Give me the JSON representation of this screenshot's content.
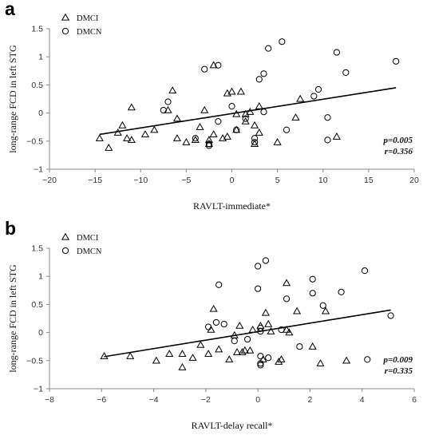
{
  "chart_data": [
    {
      "type": "scatter",
      "panel_label": "a",
      "xlabel": "RAVLT-immediate*",
      "ylabel": "long-range FCD in left STG",
      "xlim": [
        -20,
        20
      ],
      "ylim": [
        -1,
        1.5
      ],
      "xticks": [
        -20,
        -15,
        -10,
        -5,
        0,
        5,
        10,
        15,
        20
      ],
      "yticks": [
        -1,
        -0.5,
        0,
        0.5,
        1,
        1.5
      ],
      "x_tick_labels": [
        "−20",
        "−15",
        "−10",
        "−5",
        "0",
        "5",
        "10",
        "15",
        "20"
      ],
      "y_tick_labels": [
        "−1",
        "−0.5",
        "0",
        "0.5",
        "1",
        "1.5"
      ],
      "grid": false,
      "legend_position": "top-left",
      "series": [
        {
          "name": "DMCI",
          "marker": "triangle",
          "x": [
            -14.5,
            -13.5,
            -12.5,
            -12,
            -11.5,
            -11,
            -11,
            -9.5,
            -8.5,
            -7,
            -6.5,
            -6,
            -6,
            -5,
            -4,
            -3.5,
            -3,
            -2.5,
            -2.5,
            -2,
            -2,
            -1,
            -0.5,
            -0.5,
            0,
            0.5,
            0.5,
            1,
            1.5,
            1.5,
            2,
            2.5,
            2.5,
            3,
            3,
            5,
            7,
            7.5,
            11.5
          ],
          "y": [
            -0.45,
            -0.62,
            -0.35,
            -0.22,
            -0.45,
            -0.48,
            0.1,
            -0.38,
            -0.3,
            0.05,
            0.4,
            -0.45,
            -0.1,
            -0.52,
            -0.48,
            -0.25,
            0.05,
            -0.55,
            -0.48,
            0.85,
            -0.38,
            -0.45,
            -0.42,
            0.35,
            0.38,
            -0.3,
            -0.02,
            0.38,
            -0.02,
            -0.15,
            0.02,
            -0.55,
            -0.22,
            -0.35,
            0.12,
            -0.52,
            -0.08,
            0.25,
            -0.42
          ]
        },
        {
          "name": "DMCN",
          "marker": "circle",
          "x": [
            -7.5,
            -7,
            -4,
            -3,
            -2.5,
            -2.5,
            -1.5,
            -1.5,
            0,
            0.5,
            1.5,
            2.5,
            2.5,
            3,
            3.5,
            3.5,
            4,
            5.5,
            6,
            9,
            9.5,
            10.5,
            10.5,
            11.5,
            12.5,
            18
          ],
          "y": [
            0.05,
            0.2,
            -0.45,
            0.78,
            -0.58,
            -0.55,
            -0.15,
            0.85,
            0.12,
            -0.3,
            -0.1,
            -0.45,
            -0.52,
            0.6,
            0.7,
            0.02,
            1.15,
            1.27,
            -0.3,
            0.3,
            0.42,
            -0.48,
            -0.08,
            1.08,
            0.72,
            0.92
          ]
        }
      ],
      "trendline": {
        "x": [
          -14.5,
          18
        ],
        "y": [
          -0.38,
          0.45
        ]
      },
      "annotation": {
        "p": "p=0.005",
        "r": "r=0.356"
      }
    },
    {
      "type": "scatter",
      "panel_label": "b",
      "xlabel": "RAVLT-delay recall*",
      "ylabel": "long-range FCD in left STG",
      "xlim": [
        -8,
        6
      ],
      "ylim": [
        -1,
        1.5
      ],
      "xticks": [
        -8,
        -6,
        -4,
        -2,
        0,
        2,
        4,
        6
      ],
      "yticks": [
        -1,
        -0.5,
        0,
        0.5,
        1,
        1.5
      ],
      "x_tick_labels": [
        "−8",
        "−6",
        "−4",
        "−2",
        "0",
        "2",
        "4",
        "6"
      ],
      "y_tick_labels": [
        "−1",
        "−0.5",
        "0",
        "0.5",
        "1",
        "1.5"
      ],
      "grid": false,
      "legend_position": "top-left",
      "series": [
        {
          "name": "DMCI",
          "marker": "triangle",
          "x": [
            -5.9,
            -4.9,
            -3.9,
            -3.4,
            -2.9,
            -2.9,
            -2.5,
            -2.2,
            -1.9,
            -1.8,
            -1.7,
            -1.5,
            -1.1,
            -0.9,
            -0.8,
            -0.7,
            -0.6,
            -0.5,
            -0.3,
            -0.2,
            0.1,
            0.2,
            0.3,
            0.4,
            0.5,
            0.8,
            0.9,
            1.1,
            1.1,
            1.2,
            1.5,
            2.1,
            2.4,
            2.6,
            3.4
          ],
          "y": [
            -0.42,
            -0.42,
            -0.5,
            -0.38,
            -0.62,
            -0.38,
            -0.45,
            -0.22,
            -0.38,
            0.05,
            0.42,
            -0.3,
            -0.48,
            -0.05,
            -0.35,
            0.12,
            -0.35,
            -0.32,
            -0.32,
            0.05,
            0.12,
            -0.48,
            0.35,
            0.15,
            0.02,
            -0.52,
            -0.48,
            0.05,
            0.88,
            0.0,
            0.38,
            -0.25,
            -0.55,
            0.38,
            -0.5
          ]
        },
        {
          "name": "DMCN",
          "marker": "circle",
          "x": [
            -1.9,
            -1.6,
            -1.5,
            -1.3,
            -0.9,
            -0.4,
            0.0,
            0.0,
            0.1,
            0.1,
            0.1,
            0.1,
            0.1,
            0.3,
            0.4,
            0.9,
            1.1,
            1.6,
            2.1,
            2.1,
            2.5,
            3.2,
            4.1,
            4.2,
            5.1
          ],
          "y": [
            0.1,
            0.18,
            0.85,
            0.15,
            -0.15,
            -0.12,
            1.18,
            0.78,
            0.08,
            0.02,
            -0.55,
            -0.42,
            -0.58,
            1.28,
            -0.45,
            0.05,
            0.6,
            -0.25,
            0.95,
            0.7,
            0.48,
            0.72,
            1.1,
            -0.48,
            0.3
          ]
        }
      ],
      "trendline": {
        "x": [
          -5.9,
          5.1
        ],
        "y": [
          -0.43,
          0.4
        ]
      },
      "annotation": {
        "p": "p=0.009",
        "r": "r=0.335"
      }
    }
  ]
}
